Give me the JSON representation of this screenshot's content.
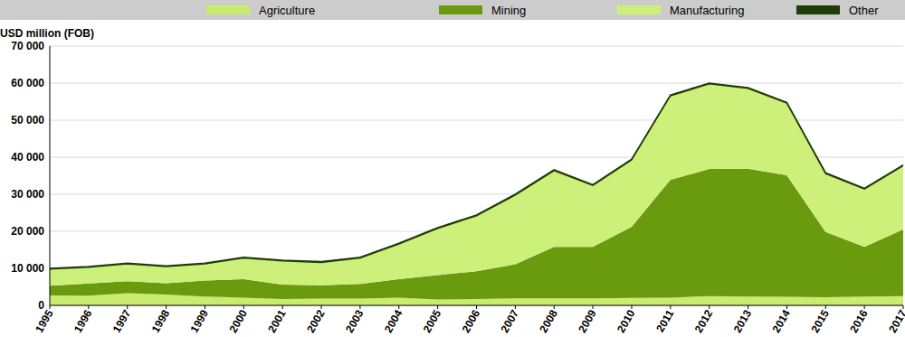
{
  "chart_data": {
    "type": "area",
    "stacked": true,
    "y_label": "USD million (FOB)",
    "legend": "top",
    "grid": true,
    "categories": [
      "1995",
      "1996",
      "1997",
      "1998",
      "1999",
      "2000",
      "2001",
      "2002",
      "2003",
      "2004",
      "2005",
      "2006",
      "2007",
      "2008",
      "2009",
      "2010",
      "2011",
      "2012",
      "2013",
      "2014",
      "2015",
      "2016",
      "2017"
    ],
    "series": [
      {
        "name": "Agriculture",
        "color": "#c9ec70",
        "values": [
          2700,
          2600,
          3300,
          2900,
          2400,
          2100,
          1700,
          1800,
          1800,
          2100,
          1600,
          1700,
          1900,
          1900,
          1900,
          2000,
          2100,
          2500,
          2400,
          2300,
          2200,
          2400,
          2500
        ]
      },
      {
        "name": "Mining",
        "color": "#6a9a0e",
        "values": [
          2600,
          3300,
          3200,
          3100,
          4300,
          5000,
          3900,
          3600,
          4000,
          5000,
          6600,
          7500,
          9200,
          13900,
          13900,
          19200,
          31800,
          34300,
          34500,
          32800,
          17600,
          13400,
          18000
        ]
      },
      {
        "name": "Manufacturing",
        "color": "#cdf07a",
        "values": [
          4500,
          4400,
          4700,
          4500,
          4500,
          5700,
          6400,
          6200,
          7000,
          9500,
          12600,
          15000,
          18700,
          20600,
          16600,
          18100,
          22700,
          23000,
          21700,
          19500,
          15800,
          15600,
          17200
        ]
      },
      {
        "name": "Other",
        "color": "#1f3d08",
        "values": [
          200,
          200,
          200,
          200,
          200,
          200,
          200,
          200,
          200,
          200,
          200,
          200,
          200,
          200,
          200,
          200,
          200,
          200,
          200,
          200,
          200,
          200,
          200
        ]
      }
    ],
    "ylim": [
      0,
      70000
    ],
    "yticks": [
      0,
      {
        "value": 10000,
        "label": "10 000"
      },
      {
        "value": 20000,
        "label": "20 000"
      },
      {
        "value": 30000,
        "label": "30 000"
      },
      {
        "value": 40000,
        "label": "40 000"
      },
      {
        "value": 50000,
        "label": "50 000"
      },
      {
        "value": 60000,
        "label": "60 000"
      },
      {
        "value": 70000,
        "label": "70 000"
      }
    ]
  }
}
